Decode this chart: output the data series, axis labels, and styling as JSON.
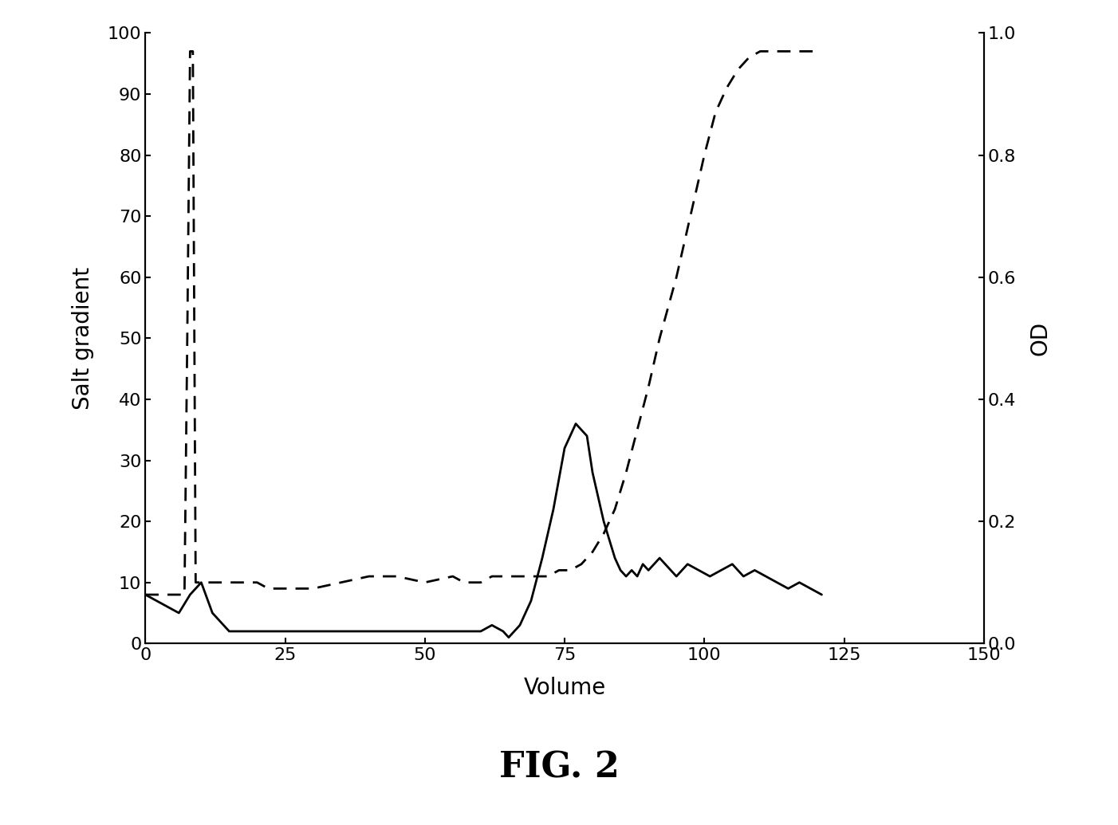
{
  "title": "FIG. 2",
  "xlabel": "Volume",
  "ylabel_left": "Salt gradient",
  "ylabel_right": "OD",
  "xlim": [
    0,
    150
  ],
  "ylim_left": [
    0,
    100
  ],
  "ylim_right": [
    0,
    1.0
  ],
  "xticks": [
    0,
    25,
    50,
    75,
    100,
    125,
    150
  ],
  "yticks_left": [
    0,
    10,
    20,
    30,
    40,
    50,
    60,
    70,
    80,
    90,
    100
  ],
  "yticks_right": [
    0.0,
    0.2,
    0.4,
    0.6,
    0.8,
    1.0
  ],
  "solid_line_x": [
    0,
    2,
    4,
    6,
    8,
    10,
    12,
    15,
    20,
    25,
    30,
    35,
    40,
    45,
    50,
    55,
    58,
    60,
    62,
    64,
    65,
    67,
    69,
    71,
    73,
    75,
    77,
    79,
    80,
    82,
    83,
    84,
    85,
    86,
    87,
    88,
    89,
    90,
    91,
    92,
    93,
    94,
    95,
    97,
    99,
    101,
    103,
    105,
    107,
    109,
    111,
    113,
    115,
    117,
    119,
    121
  ],
  "solid_line_y": [
    8,
    7,
    6,
    5,
    8,
    10,
    5,
    2,
    2,
    2,
    2,
    2,
    2,
    2,
    2,
    2,
    2,
    2,
    3,
    2,
    1,
    3,
    7,
    14,
    22,
    32,
    36,
    34,
    28,
    20,
    17,
    14,
    12,
    11,
    12,
    11,
    13,
    12,
    13,
    14,
    13,
    12,
    11,
    13,
    12,
    11,
    12,
    13,
    11,
    12,
    11,
    10,
    9,
    10,
    9,
    8
  ],
  "dashed_line_x": [
    0,
    5,
    7,
    7.5,
    8,
    8.5,
    9,
    9.5,
    10,
    11,
    12,
    14,
    16,
    18,
    20,
    22,
    24,
    26,
    28,
    30,
    35,
    40,
    45,
    50,
    55,
    57,
    60,
    62,
    64,
    66,
    68,
    70,
    72,
    74,
    76,
    78,
    80,
    82,
    84,
    86,
    88,
    90,
    92,
    95,
    98,
    100,
    102,
    104,
    106,
    108,
    110,
    111,
    112,
    114,
    116,
    118,
    120
  ],
  "dashed_line_y": [
    8,
    8,
    8,
    50,
    97,
    97,
    10,
    10,
    10,
    10,
    10,
    10,
    10,
    10,
    10,
    9,
    9,
    9,
    9,
    9,
    10,
    11,
    11,
    10,
    11,
    10,
    10,
    11,
    11,
    11,
    11,
    11,
    11,
    12,
    12,
    13,
    15,
    18,
    22,
    28,
    35,
    42,
    50,
    60,
    72,
    80,
    87,
    91,
    94,
    96,
    97,
    97,
    97,
    97,
    97,
    97,
    97
  ],
  "background_color": "#ffffff",
  "line_color": "#000000"
}
